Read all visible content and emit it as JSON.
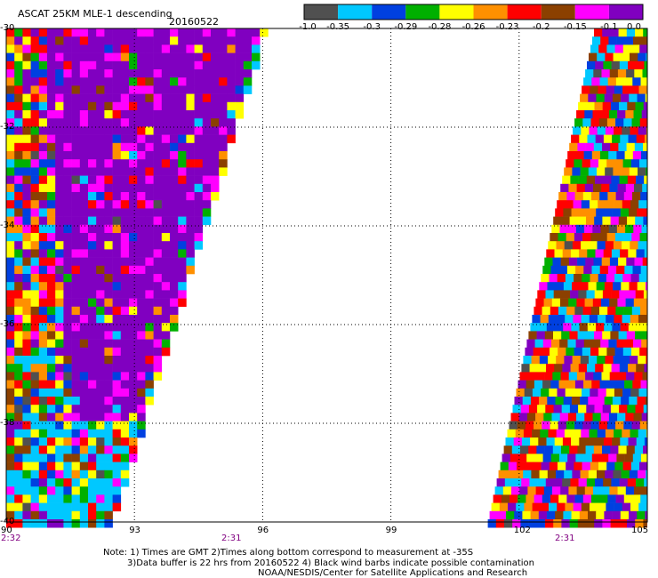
{
  "header": {
    "product_label": "ASCAT 25KM MLE-1 descending",
    "date": "20160522"
  },
  "colorbar": {
    "colors": [
      "#505050",
      "#00c8ff",
      "#0040e0",
      "#00b000",
      "#ffff00",
      "#ff9000",
      "#ff0000",
      "#8b4000",
      "#ff00ff",
      "#8000c0"
    ],
    "tick_labels": [
      "-1.0",
      "-0.35",
      "-0.3",
      "-0.29",
      "-0.28",
      "-0.26",
      "-0.23",
      "-0.2",
      "-0.15",
      "-0.1",
      "0.0"
    ]
  },
  "map": {
    "lon_ticks": [
      90,
      93,
      96,
      99,
      102,
      105
    ],
    "lon_labels": [
      "90",
      "93",
      "96",
      "99",
      "102",
      "105"
    ],
    "lat_ticks": [
      -30,
      -32,
      -34,
      -36,
      -38,
      -40
    ],
    "lat_labels": [
      "-30",
      "-32",
      "-34",
      "-36",
      "-38",
      "-40"
    ],
    "pass_times": [
      "2:32",
      "2:31",
      "2:31"
    ],
    "grid_style": "dotted"
  },
  "notes": {
    "line1": "Note: 1) Times are GMT 2)Times along bottom correspond to measurement at -35S",
    "line2": "3)Data buffer is 22 hrs from 20160522 4) Black wind barbs indicate possible contamination",
    "line3": "NOAA/NESDIS/Center for Satellite Applications and Research"
  }
}
